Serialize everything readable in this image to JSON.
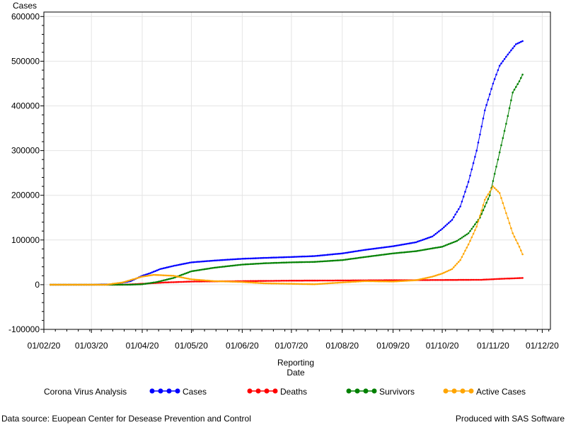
{
  "chart_data": {
    "type": "line",
    "ylabel": "Cases",
    "xlabel_lines": [
      "Reporting",
      "Date"
    ],
    "ylim": [
      -100000,
      610000
    ],
    "yticks": [
      -100000,
      0,
      100000,
      200000,
      300000,
      400000,
      500000,
      600000
    ],
    "xlim": [
      "2020-02-01",
      "2020-12-06"
    ],
    "xticks": [
      {
        "date": "2020-02-01",
        "label": "01/02/20"
      },
      {
        "date": "2020-03-01",
        "label": "01/03/20"
      },
      {
        "date": "2020-04-01",
        "label": "01/04/20"
      },
      {
        "date": "2020-05-01",
        "label": "01/05/20"
      },
      {
        "date": "2020-06-01",
        "label": "01/06/20"
      },
      {
        "date": "2020-07-01",
        "label": "01/07/20"
      },
      {
        "date": "2020-08-01",
        "label": "01/08/20"
      },
      {
        "date": "2020-09-01",
        "label": "01/09/20"
      },
      {
        "date": "2020-10-01",
        "label": "01/10/20"
      },
      {
        "date": "2020-11-01",
        "label": "01/11/20"
      },
      {
        "date": "2020-12-01",
        "label": "01/12/20"
      }
    ],
    "grid": true,
    "legend_placement": "bottom",
    "legend_title": "Corona Virus Analysis",
    "series": [
      {
        "name": "Cases",
        "color": "#0000ff",
        "points": [
          [
            "2020-02-05",
            0
          ],
          [
            "2020-03-01",
            0
          ],
          [
            "2020-03-15",
            1000
          ],
          [
            "2020-03-25",
            8000
          ],
          [
            "2020-04-01",
            20000
          ],
          [
            "2020-04-06",
            26000
          ],
          [
            "2020-04-12",
            35000
          ],
          [
            "2020-04-20",
            42000
          ],
          [
            "2020-05-01",
            50000
          ],
          [
            "2020-05-15",
            54000
          ],
          [
            "2020-06-01",
            58000
          ],
          [
            "2020-06-15",
            60000
          ],
          [
            "2020-07-01",
            62000
          ],
          [
            "2020-07-15",
            64000
          ],
          [
            "2020-08-01",
            70000
          ],
          [
            "2020-08-15",
            78000
          ],
          [
            "2020-09-01",
            86000
          ],
          [
            "2020-09-15",
            95000
          ],
          [
            "2020-09-25",
            108000
          ],
          [
            "2020-10-01",
            125000
          ],
          [
            "2020-10-07",
            145000
          ],
          [
            "2020-10-12",
            175000
          ],
          [
            "2020-10-17",
            230000
          ],
          [
            "2020-10-22",
            300000
          ],
          [
            "2020-10-27",
            390000
          ],
          [
            "2020-11-01",
            450000
          ],
          [
            "2020-11-05",
            490000
          ],
          [
            "2020-11-10",
            515000
          ],
          [
            "2020-11-15",
            538000
          ],
          [
            "2020-11-19",
            545000
          ]
        ]
      },
      {
        "name": "Deaths",
        "color": "#ff0000",
        "points": [
          [
            "2020-02-05",
            0
          ],
          [
            "2020-03-20",
            0
          ],
          [
            "2020-04-01",
            2000
          ],
          [
            "2020-04-15",
            5000
          ],
          [
            "2020-05-01",
            7000
          ],
          [
            "2020-06-01",
            8000
          ],
          [
            "2020-07-01",
            9000
          ],
          [
            "2020-08-01",
            9500
          ],
          [
            "2020-09-01",
            10000
          ],
          [
            "2020-10-01",
            10500
          ],
          [
            "2020-10-25",
            11000
          ],
          [
            "2020-11-05",
            13000
          ],
          [
            "2020-11-19",
            15000
          ]
        ]
      },
      {
        "name": "Survivors",
        "color": "#008000",
        "points": [
          [
            "2020-02-05",
            0
          ],
          [
            "2020-03-25",
            0
          ],
          [
            "2020-04-01",
            1000
          ],
          [
            "2020-04-10",
            6000
          ],
          [
            "2020-04-20",
            15000
          ],
          [
            "2020-05-01",
            30000
          ],
          [
            "2020-05-15",
            38000
          ],
          [
            "2020-06-01",
            45000
          ],
          [
            "2020-06-15",
            48000
          ],
          [
            "2020-07-01",
            50000
          ],
          [
            "2020-07-15",
            51000
          ],
          [
            "2020-08-01",
            55000
          ],
          [
            "2020-08-15",
            62000
          ],
          [
            "2020-09-01",
            70000
          ],
          [
            "2020-09-15",
            75000
          ],
          [
            "2020-10-01",
            85000
          ],
          [
            "2020-10-10",
            98000
          ],
          [
            "2020-10-17",
            115000
          ],
          [
            "2020-10-24",
            150000
          ],
          [
            "2020-10-30",
            200000
          ],
          [
            "2020-11-04",
            280000
          ],
          [
            "2020-11-09",
            360000
          ],
          [
            "2020-11-13",
            430000
          ],
          [
            "2020-11-17",
            455000
          ],
          [
            "2020-11-19",
            470000
          ]
        ]
      },
      {
        "name": "Active Cases",
        "color": "#ffa500",
        "points": [
          [
            "2020-02-05",
            0
          ],
          [
            "2020-03-10",
            0
          ],
          [
            "2020-03-20",
            5000
          ],
          [
            "2020-04-01",
            18000
          ],
          [
            "2020-04-08",
            22000
          ],
          [
            "2020-04-20",
            20000
          ],
          [
            "2020-05-01",
            12000
          ],
          [
            "2020-05-15",
            8000
          ],
          [
            "2020-06-01",
            6000
          ],
          [
            "2020-06-15",
            3000
          ],
          [
            "2020-07-01",
            2000
          ],
          [
            "2020-07-15",
            1000
          ],
          [
            "2020-08-01",
            5000
          ],
          [
            "2020-08-15",
            8000
          ],
          [
            "2020-09-01",
            7000
          ],
          [
            "2020-09-15",
            10000
          ],
          [
            "2020-09-25",
            18000
          ],
          [
            "2020-10-01",
            25000
          ],
          [
            "2020-10-07",
            35000
          ],
          [
            "2020-10-12",
            55000
          ],
          [
            "2020-10-17",
            90000
          ],
          [
            "2020-10-22",
            130000
          ],
          [
            "2020-10-27",
            190000
          ],
          [
            "2020-11-01",
            220000
          ],
          [
            "2020-11-05",
            205000
          ],
          [
            "2020-11-09",
            160000
          ],
          [
            "2020-11-13",
            115000
          ],
          [
            "2020-11-17",
            85000
          ],
          [
            "2020-11-19",
            68000
          ]
        ]
      }
    ]
  },
  "footer": {
    "source": "Data source: Euopean Center for Desease Prevention and Control",
    "credit": "Produced with SAS Software"
  }
}
